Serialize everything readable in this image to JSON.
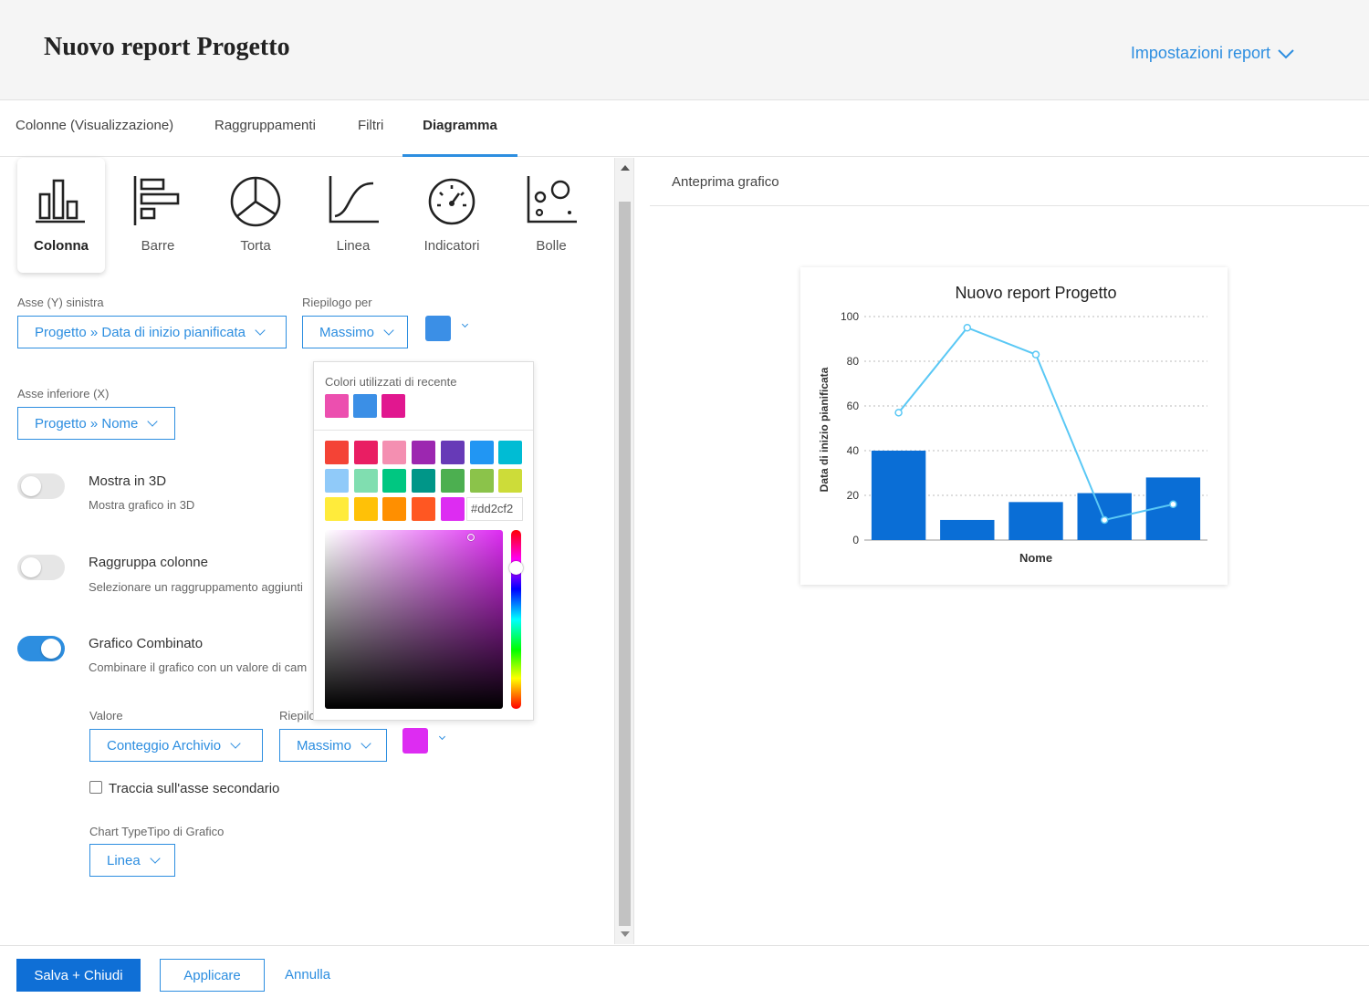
{
  "header": {
    "title": "Nuovo report Progetto",
    "settings_label": "Impostazioni report"
  },
  "tabs": [
    {
      "label": "Colonne (Visualizzazione)",
      "active": false
    },
    {
      "label": "Raggruppamenti",
      "active": false
    },
    {
      "label": "Filtri",
      "active": false
    },
    {
      "label": "Diagramma",
      "active": true
    }
  ],
  "chart_types": [
    {
      "label": "Colonna",
      "icon": "column-chart-icon",
      "selected": true
    },
    {
      "label": "Barre",
      "icon": "bar-chart-icon",
      "selected": false
    },
    {
      "label": "Torta",
      "icon": "pie-chart-icon",
      "selected": false
    },
    {
      "label": "Linea",
      "icon": "line-chart-icon",
      "selected": false
    },
    {
      "label": "Indicatori",
      "icon": "gauge-icon",
      "selected": false
    },
    {
      "label": "Bolle",
      "icon": "bubble-chart-icon",
      "selected": false
    }
  ],
  "y_axis": {
    "label": "Asse (Y) sinistra",
    "value": "Progetto » Data di inizio pianificata"
  },
  "summary": {
    "label": "Riepilogo per",
    "value": "Massimo",
    "color": "#3b8fe6"
  },
  "x_axis": {
    "label": "Asse inferiore (X)",
    "value": "Progetto » Nome"
  },
  "options": [
    {
      "title": "Mostra in 3D",
      "desc": "Mostra grafico in 3D",
      "on": false
    },
    {
      "title": "Raggruppa colonne",
      "desc": "Selezionare un raggruppamento aggiunti",
      "on": false
    },
    {
      "title": "Grafico Combinato",
      "desc": "Combinare il grafico con un valore di cam",
      "on": true
    }
  ],
  "combo": {
    "value_label": "Valore",
    "value": "Conteggio Archivio",
    "summary_label": "Riepilo",
    "summary_value": "Massimo",
    "color": "#dd2cf2",
    "secondary_axis_label": "Traccia sull'asse secondario",
    "secondary_axis_checked": false,
    "chart_type_label": "Chart TypeTipo di Grafico",
    "chart_type_value": "Linea"
  },
  "color_picker": {
    "recent_label": "Colori utilizzati di recente",
    "recent": [
      "#ec4faf",
      "#3b8fe6",
      "#e1178f"
    ],
    "palette": [
      [
        "#f44336",
        "#e91e63",
        "#f48fb1",
        "#9c27b0",
        "#673ab7",
        "#2196f3",
        "#00bcd4"
      ],
      [
        "#90caf9",
        "#80deb0",
        "#00c781",
        "#009688",
        "#4caf50",
        "#8bc34a",
        "#cddc39"
      ],
      [
        "#ffeb3b",
        "#ffc107",
        "#ff8f00",
        "#ff5722",
        "#dd2cf2"
      ]
    ],
    "hex_value": "#dd2cf2",
    "saturation": 0.82,
    "value": 0.96,
    "hue_position": 0.21
  },
  "preview": {
    "title": "Anteprima grafico"
  },
  "chart_data": {
    "type": "bar",
    "title": "Nuovo report Progetto",
    "xlabel": "Nome",
    "ylabel": "Data di inizio pianificata",
    "ylim": [
      0,
      100
    ],
    "yticks": [
      0,
      20,
      40,
      60,
      80,
      100
    ],
    "grid": true,
    "categories": [
      "",
      "",
      "",
      "",
      ""
    ],
    "series": [
      {
        "type": "bar",
        "color": "#0a6ed6",
        "values": [
          40,
          9,
          17,
          21,
          28
        ]
      },
      {
        "type": "line",
        "color": "#5ac8f5",
        "values": [
          57,
          95,
          83,
          9,
          16
        ]
      }
    ]
  },
  "footer": {
    "save_label": "Salva + Chiudi",
    "apply_label": "Applicare",
    "cancel_label": "Annulla"
  }
}
